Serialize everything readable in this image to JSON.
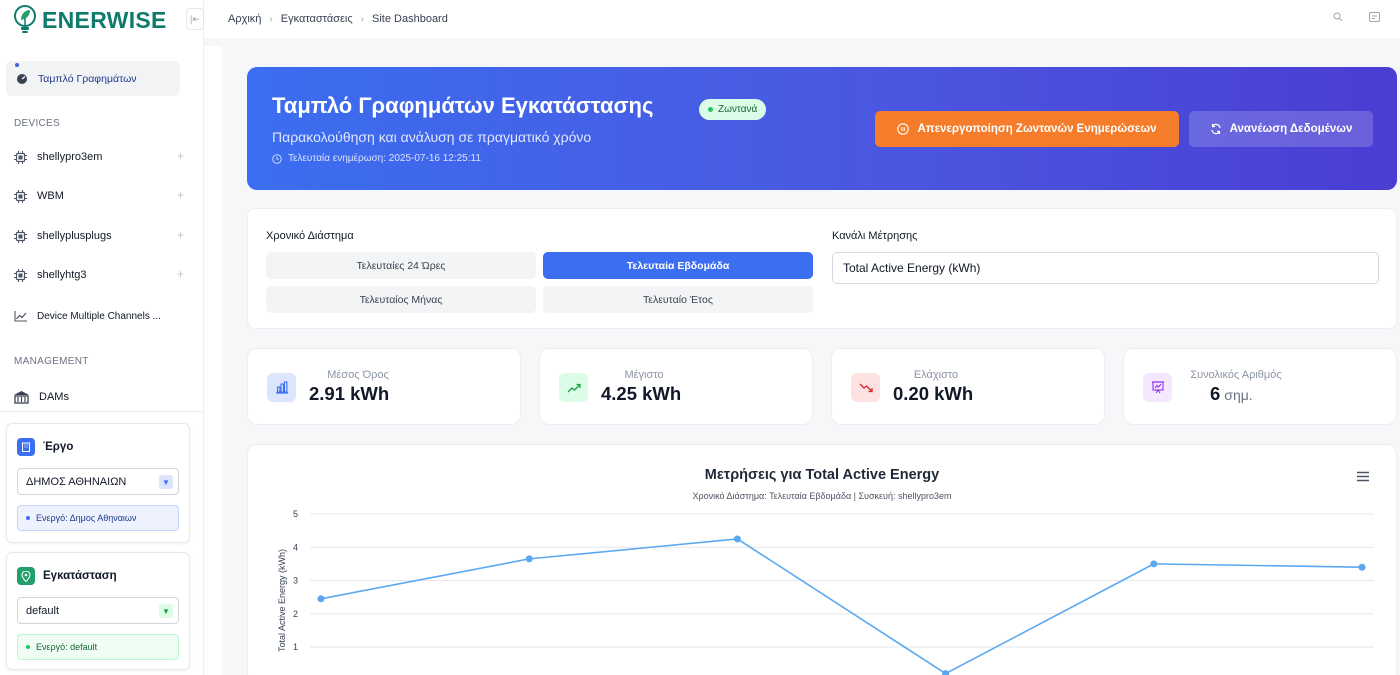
{
  "brand": {
    "name": "ENERWISE"
  },
  "sidebar": {
    "active_item": "Ταμπλό Γραφημάτων",
    "devices_title": "DEVICES",
    "devices": [
      {
        "label": "shellypro3em",
        "icon": "chip-icon"
      },
      {
        "label": "WBM",
        "icon": "chip-icon"
      },
      {
        "label": "shellyplusplugs",
        "icon": "chip-icon"
      },
      {
        "label": "shellyhtg3",
        "icon": "chip-icon"
      }
    ],
    "multi_channels": "Device Multiple Channels ...",
    "management_title": "MANAGEMENT",
    "dams": "DAMs",
    "project_card": {
      "title": "Έργο",
      "selected": "ΔΗΜΟΣ ΑΘΗΝΑΙΩΝ",
      "active": "Ενεργό: Δημος Αθηναιων"
    },
    "site_card": {
      "title": "Εγκατάσταση",
      "selected": "default",
      "active": "Ενεργό: default"
    }
  },
  "topbar": {
    "breadcrumbs": [
      "Αρχική",
      "Εγκαταστάσεις",
      "Site Dashboard"
    ]
  },
  "hero": {
    "title": "Ταμπλό Γραφημάτων Εγκατάστασης",
    "badge": "Ζωντανά",
    "subtitle": "Παρακολούθηση και ανάλυση σε πραγματικό χρόνο",
    "last_update": "Τελευταία ενημέρωση: 2025-07-16 12:25:11",
    "disable_button": "Απενεργοποίηση Ζωντανών Ενημερώσεων",
    "refresh_button": "Ανανέωση Δεδομένων"
  },
  "filters": {
    "range_label": "Χρονικό Διάστημα",
    "ranges": [
      "Τελευταίες 24 Ώρες",
      "Τελευταία Εβδομάδα",
      "Τελευταίος Μήνας",
      "Τελευταίο Έτος"
    ],
    "active_range": "Τελευταία Εβδομάδα",
    "channel_label": "Κανάλι Μέτρησης",
    "channel_value": "Total Active Energy (kWh)"
  },
  "stats": [
    {
      "label": "Μέσος Όρος",
      "value": "2.91 kWh",
      "unit": "",
      "icon": "bar-chart-icon",
      "color": "#3b6ef0"
    },
    {
      "label": "Μέγιστο",
      "value": "4.25 kWh",
      "unit": "",
      "icon": "trend-up-icon",
      "color": "#16a34a"
    },
    {
      "label": "Ελάχιστο",
      "value": "0.20 kWh",
      "unit": "",
      "icon": "trend-down-icon",
      "color": "#dc2626"
    },
    {
      "label": "Συνολικός Αριθμός",
      "value": "6",
      "unit": "σημ.",
      "icon": "presentation-chart-icon",
      "color": "#9333ea"
    }
  ],
  "chart_data": {
    "type": "line",
    "title": "Μετρήσεις για Total Active Energy",
    "subtitle": "Χρονικό Διάστημα: Τελευταία Εβδομάδα | Συσκευή: shellypro3em",
    "ylabel": "Total Active Energy (kWh)",
    "xlabel": "",
    "y_ticks": [
      1,
      2,
      3,
      4,
      5
    ],
    "ylim": [
      0,
      5
    ],
    "series": [
      {
        "values": [
          2.45,
          3.65,
          4.25,
          0.2,
          3.5,
          3.4
        ]
      }
    ],
    "color": "#5aa8f0",
    "grid": true
  }
}
